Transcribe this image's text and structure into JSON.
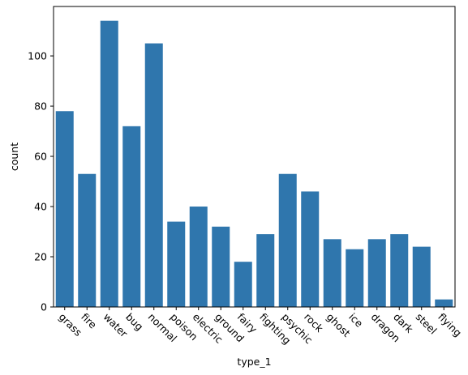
{
  "chart_data": {
    "type": "bar",
    "categories": [
      "grass",
      "fire",
      "water",
      "bug",
      "normal",
      "poison",
      "electric",
      "ground",
      "fairy",
      "fighting",
      "psychic",
      "rock",
      "ghost",
      "ice",
      "dragon",
      "dark",
      "steel",
      "flying"
    ],
    "values": [
      78,
      53,
      114,
      72,
      105,
      34,
      40,
      32,
      18,
      29,
      53,
      46,
      27,
      23,
      27,
      29,
      24,
      3
    ],
    "xlabel": "type_1",
    "ylabel": "count",
    "ylim": [
      0,
      119.7
    ],
    "yticks": [
      0,
      20,
      40,
      60,
      80,
      100
    ],
    "bar_color": "#2f76ad",
    "grid": false,
    "legend": false
  }
}
